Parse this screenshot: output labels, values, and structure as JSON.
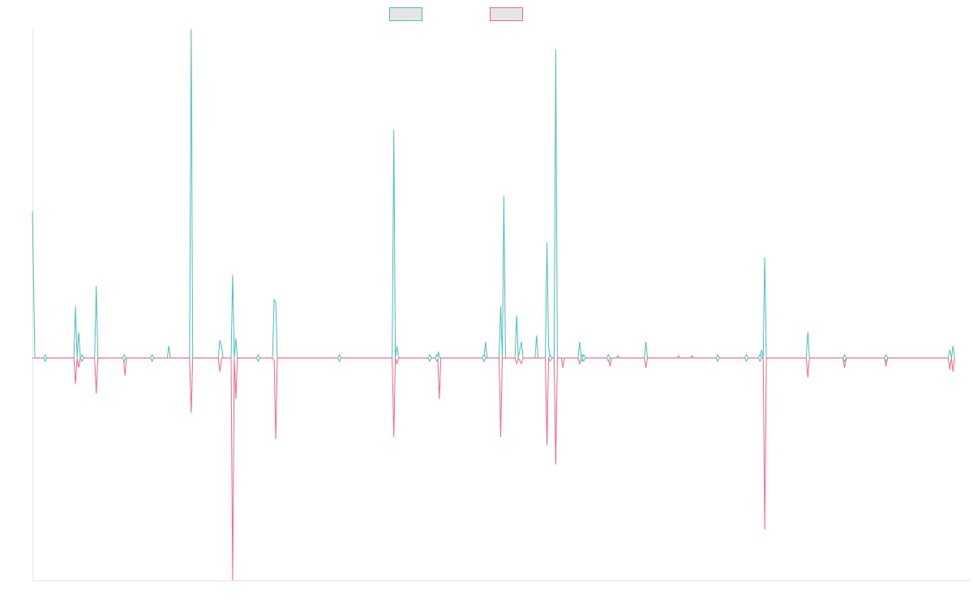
{
  "chart_data": {
    "type": "line",
    "title": "",
    "xlabel": "",
    "ylabel": "",
    "x_range": [
      0,
      1175
    ],
    "ylim": [
      -276,
      408
    ],
    "grid": false,
    "legend": "top-center",
    "series": [
      {
        "color": "#4bc0c0",
        "points": [
          [
            0,
            182
          ],
          [
            3,
            0
          ],
          [
            16,
            0
          ],
          [
            52,
            0
          ],
          [
            54,
            64
          ],
          [
            56,
            0
          ],
          [
            58,
            32
          ],
          [
            60,
            0
          ],
          [
            62,
            0
          ],
          [
            78,
            0
          ],
          [
            80,
            89
          ],
          [
            82,
            0
          ],
          [
            116,
            0
          ],
          [
            150,
            0
          ],
          [
            169,
            0
          ],
          [
            171,
            15
          ],
          [
            173,
            0
          ],
          [
            197,
            0
          ],
          [
            199,
            408
          ],
          [
            201,
            0
          ],
          [
            233,
            0
          ],
          [
            235,
            22
          ],
          [
            237,
            15
          ],
          [
            239,
            0
          ],
          [
            249,
            0
          ],
          [
            251,
            103
          ],
          [
            253,
            0
          ],
          [
            255,
            24
          ],
          [
            257,
            0
          ],
          [
            283,
            0
          ],
          [
            301,
            0
          ],
          [
            303,
            73
          ],
          [
            305,
            68
          ],
          [
            307,
            0
          ],
          [
            385,
            0
          ],
          [
            451,
            0
          ],
          [
            453,
            283
          ],
          [
            455,
            0
          ],
          [
            457,
            15
          ],
          [
            459,
            0
          ],
          [
            498,
            0
          ],
          [
            507,
            0
          ],
          [
            509,
            7
          ],
          [
            511,
            0
          ],
          [
            566,
            0
          ],
          [
            568,
            20
          ],
          [
            570,
            0
          ],
          [
            585,
            0
          ],
          [
            587,
            64
          ],
          [
            589,
            0
          ],
          [
            591,
            201
          ],
          [
            593,
            0
          ],
          [
            605,
            0
          ],
          [
            607,
            53
          ],
          [
            609,
            0
          ],
          [
            613,
            20
          ],
          [
            615,
            0
          ],
          [
            630,
            0
          ],
          [
            632,
            28
          ],
          [
            634,
            0
          ],
          [
            643,
            0
          ],
          [
            645,
            143
          ],
          [
            647,
            15
          ],
          [
            649,
            0
          ],
          [
            654,
            0
          ],
          [
            656,
            383
          ],
          [
            658,
            0
          ],
          [
            684,
            0
          ],
          [
            686,
            20
          ],
          [
            688,
            0
          ],
          [
            732,
            0
          ],
          [
            734,
            3
          ],
          [
            736,
            0
          ],
          [
            767,
            0
          ],
          [
            769,
            20
          ],
          [
            771,
            0
          ],
          [
            808,
            0
          ],
          [
            810,
            3
          ],
          [
            812,
            0
          ],
          [
            825,
            0
          ],
          [
            827,
            3
          ],
          [
            829,
            0
          ],
          [
            912,
            0
          ],
          [
            914,
            10
          ],
          [
            916,
            0
          ],
          [
            918,
            125
          ],
          [
            920,
            0
          ],
          [
            970,
            0
          ],
          [
            972,
            32
          ],
          [
            974,
            0
          ],
          [
            1148,
            0
          ],
          [
            1150,
            10
          ],
          [
            1152,
            0
          ],
          [
            1154,
            15
          ],
          [
            1156,
            0
          ]
        ]
      },
      {
        "color": "#ff6384",
        "points": [
          [
            0,
            0
          ],
          [
            52,
            0
          ],
          [
            54,
            -32
          ],
          [
            56,
            0
          ],
          [
            58,
            -12
          ],
          [
            60,
            0
          ],
          [
            78,
            0
          ],
          [
            80,
            -44
          ],
          [
            82,
            0
          ],
          [
            114,
            0
          ],
          [
            116,
            -22
          ],
          [
            118,
            0
          ],
          [
            197,
            0
          ],
          [
            199,
            -68
          ],
          [
            201,
            0
          ],
          [
            233,
            0
          ],
          [
            235,
            -17
          ],
          [
            237,
            0
          ],
          [
            249,
            0
          ],
          [
            251,
            -276
          ],
          [
            253,
            0
          ],
          [
            255,
            -51
          ],
          [
            257,
            0
          ],
          [
            301,
            0
          ],
          [
            303,
            -3
          ],
          [
            305,
            -101
          ],
          [
            307,
            0
          ],
          [
            451,
            0
          ],
          [
            453,
            -98
          ],
          [
            455,
            0
          ],
          [
            457,
            -7
          ],
          [
            459,
            0
          ],
          [
            508,
            0
          ],
          [
            510,
            -51
          ],
          [
            512,
            0
          ],
          [
            585,
            0
          ],
          [
            587,
            -98
          ],
          [
            589,
            0
          ],
          [
            605,
            0
          ],
          [
            607,
            -7
          ],
          [
            609,
            0
          ],
          [
            613,
            -7
          ],
          [
            615,
            0
          ],
          [
            643,
            0
          ],
          [
            645,
            -108
          ],
          [
            647,
            0
          ],
          [
            654,
            0
          ],
          [
            656,
            -132
          ],
          [
            658,
            0
          ],
          [
            663,
            0
          ],
          [
            665,
            -12
          ],
          [
            667,
            0
          ],
          [
            684,
            0
          ],
          [
            686,
            -7
          ],
          [
            688,
            0
          ],
          [
            722,
            0
          ],
          [
            724,
            -10
          ],
          [
            726,
            0
          ],
          [
            767,
            0
          ],
          [
            769,
            -12
          ],
          [
            771,
            0
          ],
          [
            916,
            0
          ],
          [
            918,
            -213
          ],
          [
            920,
            0
          ],
          [
            970,
            0
          ],
          [
            972,
            -24
          ],
          [
            974,
            0
          ],
          [
            1016,
            0
          ],
          [
            1018,
            -12
          ],
          [
            1020,
            0
          ],
          [
            1068,
            0
          ],
          [
            1070,
            -10
          ],
          [
            1072,
            0
          ],
          [
            1148,
            0
          ],
          [
            1150,
            -14
          ],
          [
            1152,
            0
          ],
          [
            1154,
            -17
          ],
          [
            1156,
            0
          ]
        ]
      }
    ],
    "markers": [
      {
        "x": 16,
        "y": 0
      },
      {
        "x": 62,
        "y": 0
      },
      {
        "x": 115,
        "y": 0
      },
      {
        "x": 150,
        "y": 0
      },
      {
        "x": 283,
        "y": 0
      },
      {
        "x": 385,
        "y": 0
      },
      {
        "x": 498,
        "y": 0
      },
      {
        "x": 507,
        "y": 0
      },
      {
        "x": 566,
        "y": 0
      },
      {
        "x": 649,
        "y": 0
      },
      {
        "x": 689,
        "y": 0
      },
      {
        "x": 691,
        "y": 0
      },
      {
        "x": 722,
        "y": 0
      },
      {
        "x": 859,
        "y": 0
      },
      {
        "x": 895,
        "y": 0
      },
      {
        "x": 912,
        "y": 0
      },
      {
        "x": 1018,
        "y": 0
      },
      {
        "x": 1070,
        "y": 0
      }
    ]
  }
}
